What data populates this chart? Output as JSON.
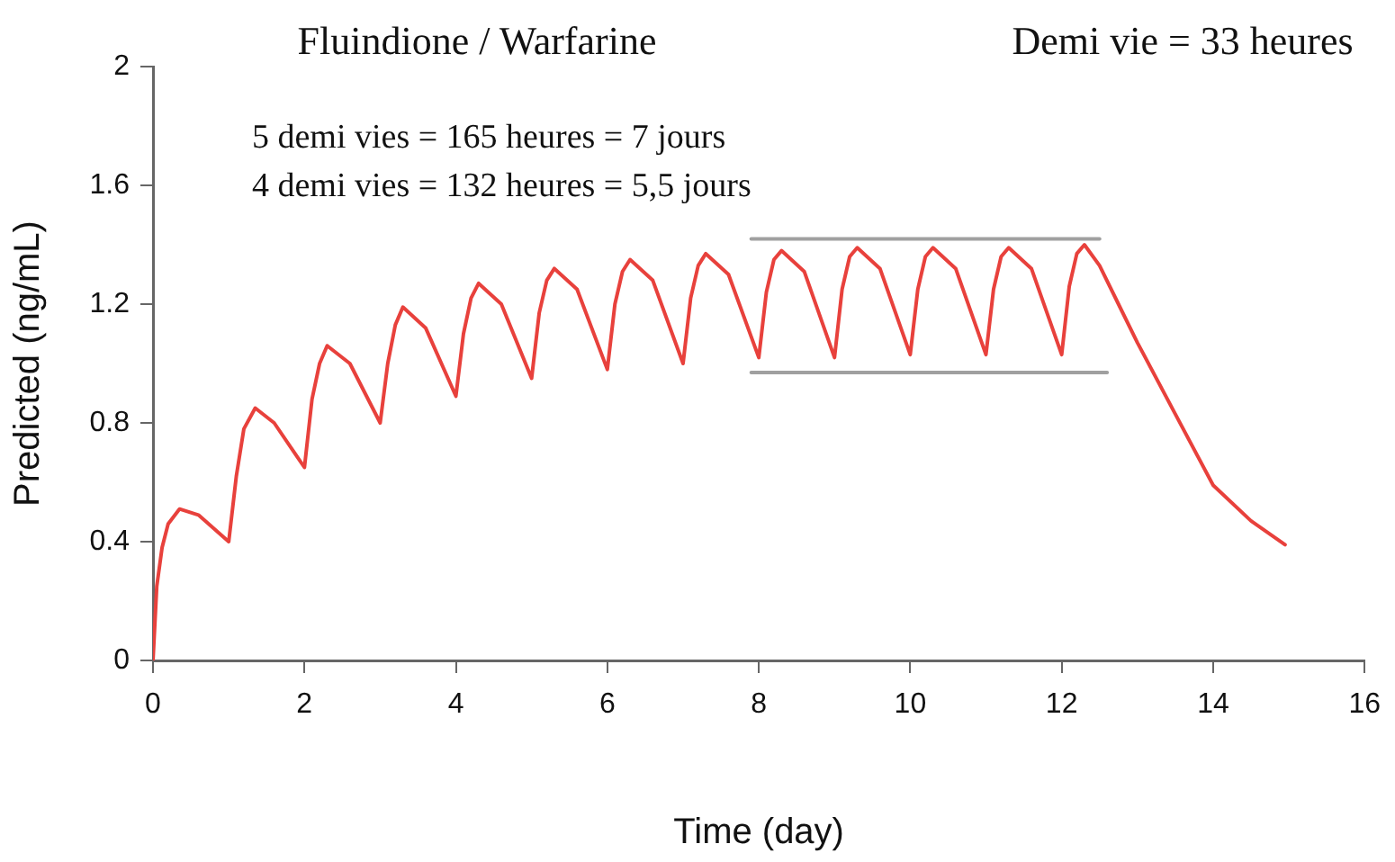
{
  "chart_data": {
    "type": "line",
    "title": "Fluindione / Warfarine",
    "xlabel": "Time (day)",
    "ylabel": "Predicted (ng/mL)",
    "annotations": [
      "Demi vie = 33 heures",
      "5 demi vies = 165 heures = 7 jours",
      "4 demi vies = 132 heures = 5,5 jours"
    ],
    "xlim": [
      0,
      16
    ],
    "xticks": [
      0,
      2,
      4,
      6,
      8,
      10,
      12,
      14,
      16
    ],
    "ylim": [
      0,
      2
    ],
    "yticks": [
      0,
      0.4,
      0.8,
      1.2,
      1.6,
      2
    ],
    "grid": false,
    "legend": false,
    "marker": "none",
    "line_style": "solid",
    "series": [
      {
        "color": "#e8413c",
        "x": [
          0,
          0.05,
          0.12,
          0.2,
          0.35,
          0.6,
          1.0,
          1.1,
          1.2,
          1.35,
          1.6,
          2.0,
          2.1,
          2.2,
          2.3,
          2.6,
          3.0,
          3.1,
          3.2,
          3.3,
          3.6,
          4.0,
          4.1,
          4.2,
          4.3,
          4.6,
          5.0,
          5.1,
          5.2,
          5.3,
          5.6,
          6.0,
          6.1,
          6.2,
          6.3,
          6.6,
          7.0,
          7.1,
          7.2,
          7.3,
          7.6,
          8.0,
          8.1,
          8.2,
          8.3,
          8.6,
          9.0,
          9.1,
          9.2,
          9.3,
          9.6,
          10.0,
          10.1,
          10.2,
          10.3,
          10.6,
          11.0,
          11.1,
          11.2,
          11.3,
          11.6,
          12.0,
          12.1,
          12.2,
          12.3,
          12.5,
          12.75,
          13.0,
          13.5,
          14.0,
          14.5,
          14.95
        ],
        "values": [
          0,
          0.25,
          0.38,
          0.46,
          0.51,
          0.49,
          0.4,
          0.62,
          0.78,
          0.85,
          0.8,
          0.65,
          0.88,
          1.0,
          1.06,
          1.0,
          0.8,
          1.0,
          1.13,
          1.19,
          1.12,
          0.89,
          1.1,
          1.22,
          1.27,
          1.2,
          0.95,
          1.17,
          1.28,
          1.32,
          1.25,
          0.98,
          1.2,
          1.31,
          1.35,
          1.28,
          1.0,
          1.22,
          1.33,
          1.37,
          1.3,
          1.02,
          1.24,
          1.35,
          1.38,
          1.31,
          1.02,
          1.25,
          1.36,
          1.39,
          1.32,
          1.03,
          1.25,
          1.36,
          1.39,
          1.32,
          1.03,
          1.25,
          1.36,
          1.39,
          1.32,
          1.03,
          1.26,
          1.37,
          1.4,
          1.33,
          1.2,
          1.07,
          0.83,
          0.59,
          0.47,
          0.39
        ]
      },
      {
        "color": "#a0a0a0",
        "x": [
          7.9,
          12.5
        ],
        "values": [
          1.42,
          1.42
        ]
      },
      {
        "color": "#a0a0a0",
        "x": [
          7.9,
          12.6
        ],
        "values": [
          0.97,
          0.97
        ]
      }
    ]
  }
}
